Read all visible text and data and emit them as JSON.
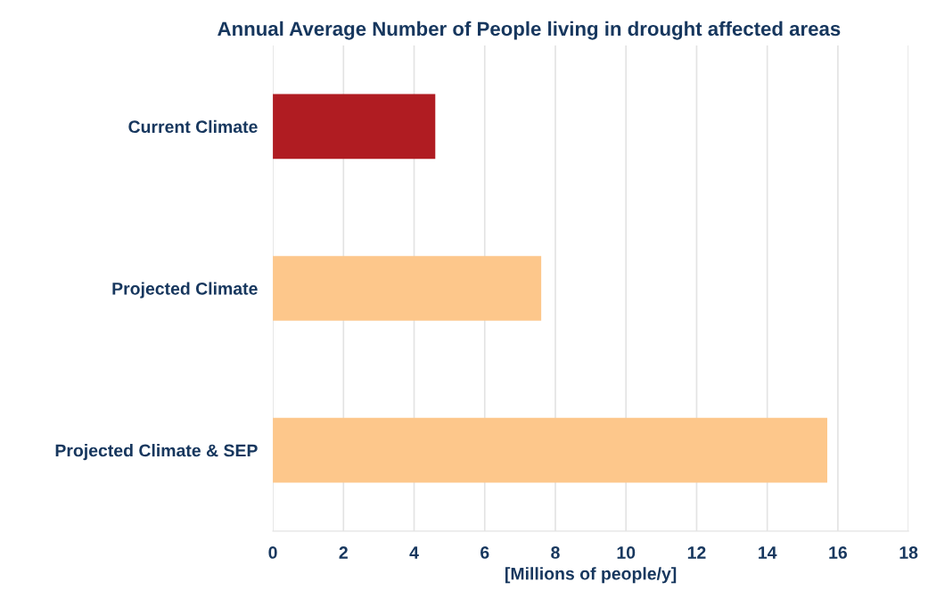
{
  "chart_data": {
    "type": "bar",
    "orientation": "horizontal",
    "title": "Annual Average Number of People living in drought affected areas",
    "xlabel": "[Millions of people/y]",
    "categories": [
      "Current Climate",
      "Projected Climate",
      "Projected Climate & SEP"
    ],
    "values": [
      4.6,
      7.6,
      15.7
    ],
    "colors": [
      "#b01c22",
      "#fdc78b",
      "#fdc78b"
    ],
    "xlim": [
      0,
      18
    ],
    "xticks": [
      0,
      2,
      4,
      6,
      8,
      10,
      12,
      14,
      16,
      18
    ],
    "grid": "x"
  }
}
